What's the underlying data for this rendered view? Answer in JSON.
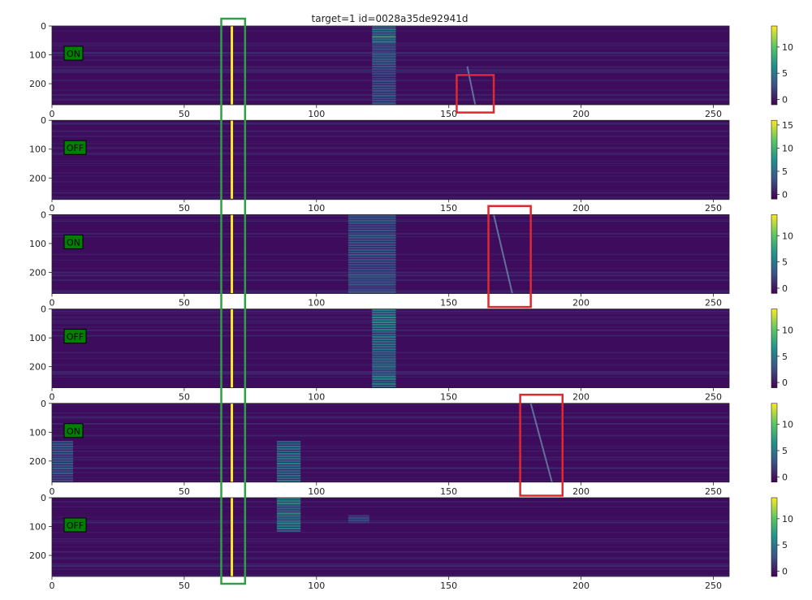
{
  "chart_data": {
    "type": "heatmap",
    "title": "target=1  id=0028a35de92941d",
    "xlim": [
      0,
      256
    ],
    "ylim": [
      0,
      273
    ],
    "x_ticks": [
      0,
      50,
      100,
      150,
      200,
      250
    ],
    "y_ticks": [
      0,
      100,
      200
    ],
    "colormap": "viridis",
    "vertical_line": {
      "x": 68,
      "color": "#fde725"
    },
    "green_box": {
      "x_range": [
        64,
        73
      ],
      "color": "#2ea043"
    },
    "panels": [
      {
        "label": "ON",
        "colorbar_ticks": [
          0,
          5,
          10
        ],
        "colorbar_max": 14,
        "bright_bands": [
          {
            "x_range": [
              121,
              130
            ],
            "y_range": [
              0,
              60
            ],
            "intensity": 0.6
          },
          {
            "x_range": [
              121,
              130
            ],
            "y_range": [
              60,
              273
            ],
            "intensity": 0.35
          }
        ],
        "drift": {
          "from": [
            157,
            140
          ],
          "to": [
            160,
            273
          ]
        },
        "red_box": {
          "x_range": [
            153,
            167
          ],
          "y_range": [
            170,
            300
          ]
        }
      },
      {
        "label": "OFF",
        "colorbar_ticks": [
          0,
          5,
          10,
          15
        ],
        "colorbar_max": 16,
        "bright_bands": [],
        "drift": null,
        "red_box": null
      },
      {
        "label": "ON",
        "colorbar_ticks": [
          0,
          5,
          10
        ],
        "colorbar_max": 14,
        "bright_bands": [
          {
            "x_range": [
              112,
              130
            ],
            "y_range": [
              0,
              273
            ],
            "intensity": 0.35
          }
        ],
        "drift": {
          "from": [
            167,
            0
          ],
          "to": [
            174,
            273
          ]
        },
        "red_box": {
          "x_range": [
            165,
            181
          ],
          "y_range": [
            -30,
            320
          ]
        }
      },
      {
        "label": "OFF",
        "colorbar_ticks": [
          0,
          5,
          10
        ],
        "colorbar_max": 14,
        "bright_bands": [
          {
            "x_range": [
              121,
              130
            ],
            "y_range": [
              0,
              273
            ],
            "intensity": 0.55
          }
        ],
        "drift": null,
        "red_box": null
      },
      {
        "label": "ON",
        "colorbar_ticks": [
          0,
          5,
          10
        ],
        "colorbar_max": 14,
        "bright_bands": [
          {
            "x_range": [
              85,
              94
            ],
            "y_range": [
              130,
              273
            ],
            "intensity": 0.55
          },
          {
            "x_range": [
              0,
              8
            ],
            "y_range": [
              130,
              273
            ],
            "intensity": 0.35
          }
        ],
        "drift": {
          "from": [
            181,
            0
          ],
          "to": [
            189,
            273
          ]
        },
        "red_box": {
          "x_range": [
            177,
            193
          ],
          "y_range": [
            -30,
            320
          ]
        }
      },
      {
        "label": "OFF",
        "colorbar_ticks": [
          0,
          5,
          10
        ],
        "colorbar_max": 14,
        "bright_bands": [
          {
            "x_range": [
              85,
              94
            ],
            "y_range": [
              0,
              120
            ],
            "intensity": 0.55
          },
          {
            "x_range": [
              112,
              120
            ],
            "y_range": [
              60,
              90
            ],
            "intensity": 0.3
          }
        ],
        "drift": null,
        "red_box": null
      }
    ]
  }
}
